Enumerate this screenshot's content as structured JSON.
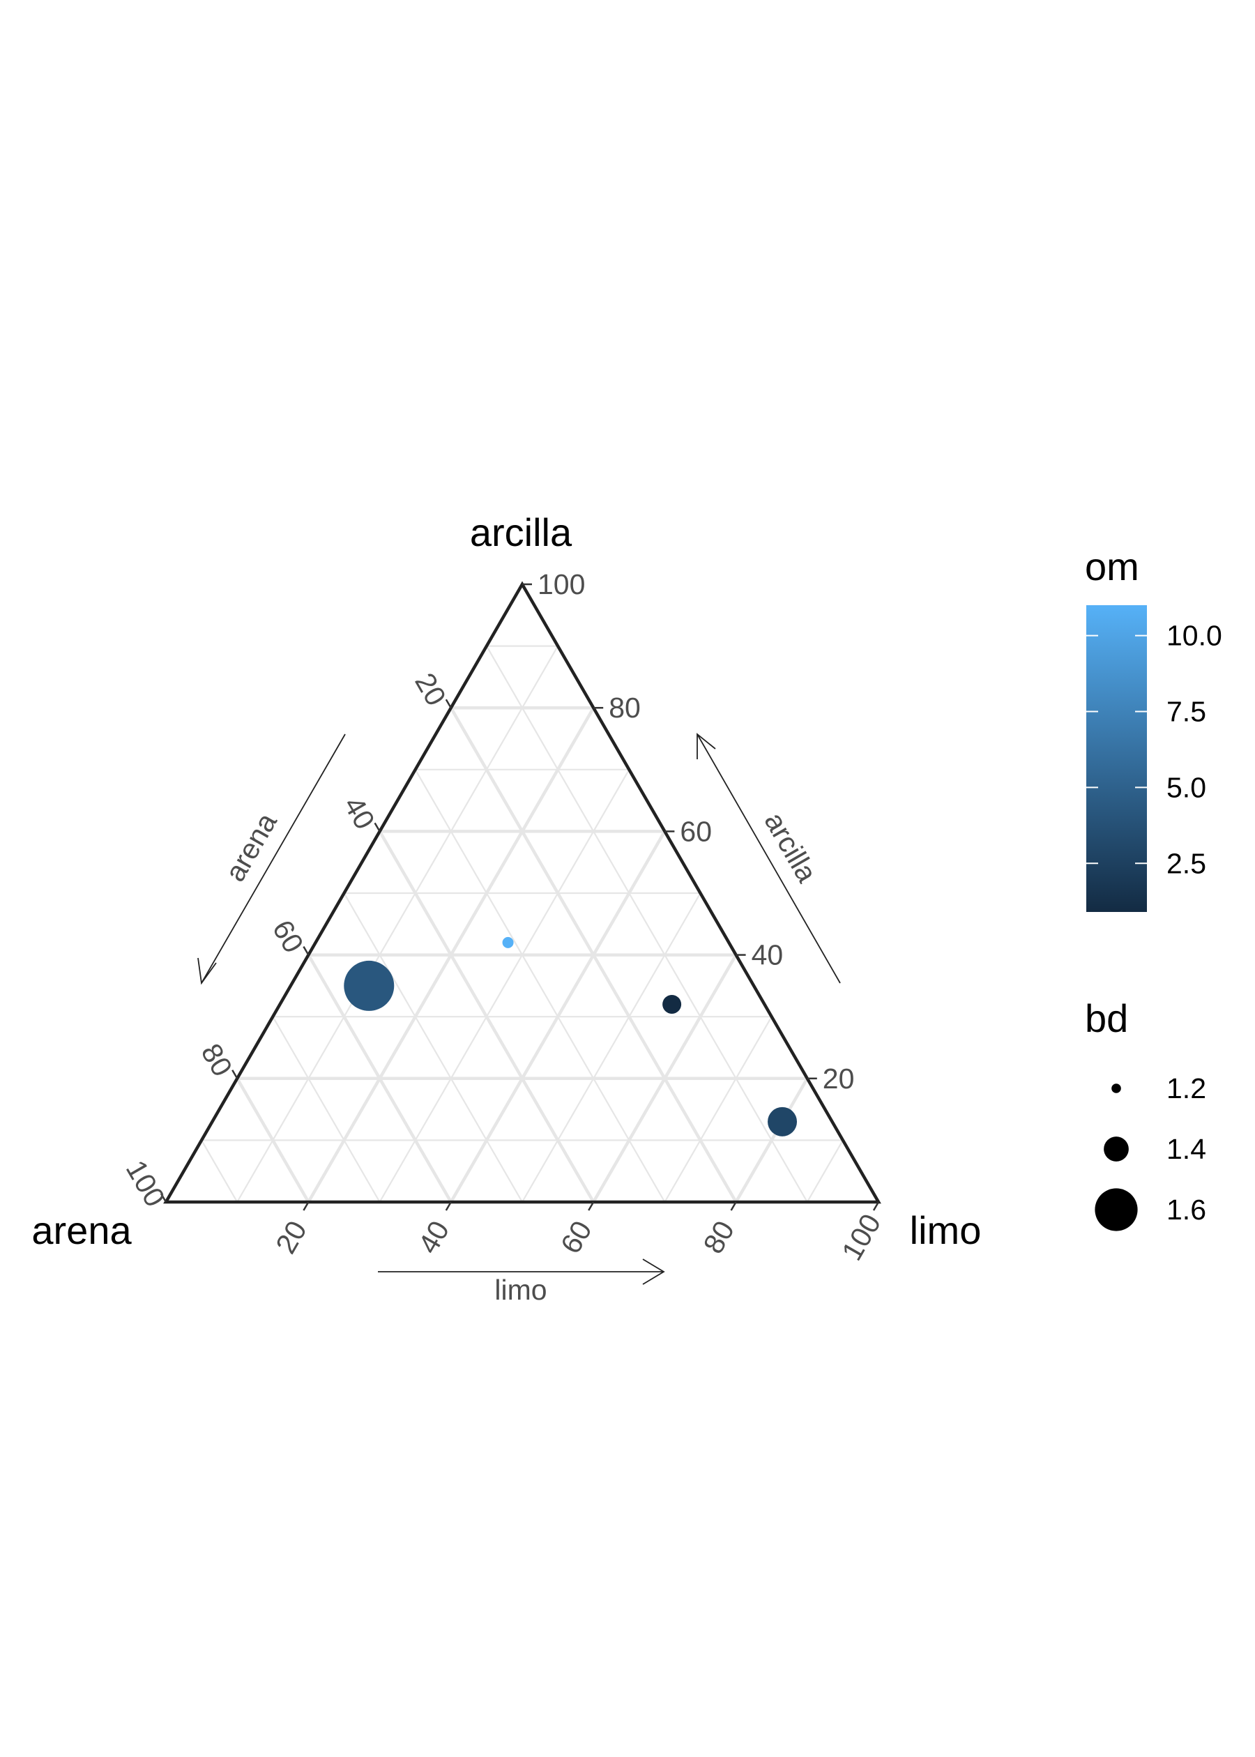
{
  "chart_data": {
    "type": "ternary-scatter",
    "axes": {
      "top": "arcilla",
      "left": "arena",
      "right": "limo"
    },
    "arrow_labels": {
      "left": "arena",
      "right": "arcilla",
      "bottom": "limo"
    },
    "ticks": [
      "20",
      "40",
      "60",
      "80",
      "100"
    ],
    "grid": true,
    "points": [
      {
        "arena": 54,
        "limo": 11,
        "arcilla": 35,
        "om": 4.2,
        "bd": 1.6
      },
      {
        "arena": 31,
        "limo": 27,
        "arcilla": 42,
        "om": 11.0,
        "bd": 1.05
      },
      {
        "arena": 13,
        "limo": 55,
        "arcilla": 32,
        "om": 0.9,
        "bd": 1.3
      },
      {
        "arena": 7,
        "limo": 80,
        "arcilla": 13,
        "om": 2.9,
        "bd": 1.4
      }
    ],
    "color_legend": {
      "title": "om",
      "min": 0.9,
      "max": 11.0,
      "low_color": "#132B43",
      "high_color": "#56B1F7",
      "breaks": [
        {
          "value": 2.5,
          "label": "2.5"
        },
        {
          "value": 5.0,
          "label": "5.0"
        },
        {
          "value": 7.5,
          "label": "7.5"
        },
        {
          "value": 10.0,
          "label": "10.0"
        }
      ]
    },
    "size_legend": {
      "title": "bd",
      "entries": [
        {
          "value": 1.2,
          "label": "1.2"
        },
        {
          "value": 1.4,
          "label": "1.4"
        },
        {
          "value": 1.6,
          "label": "1.6"
        }
      ]
    }
  }
}
